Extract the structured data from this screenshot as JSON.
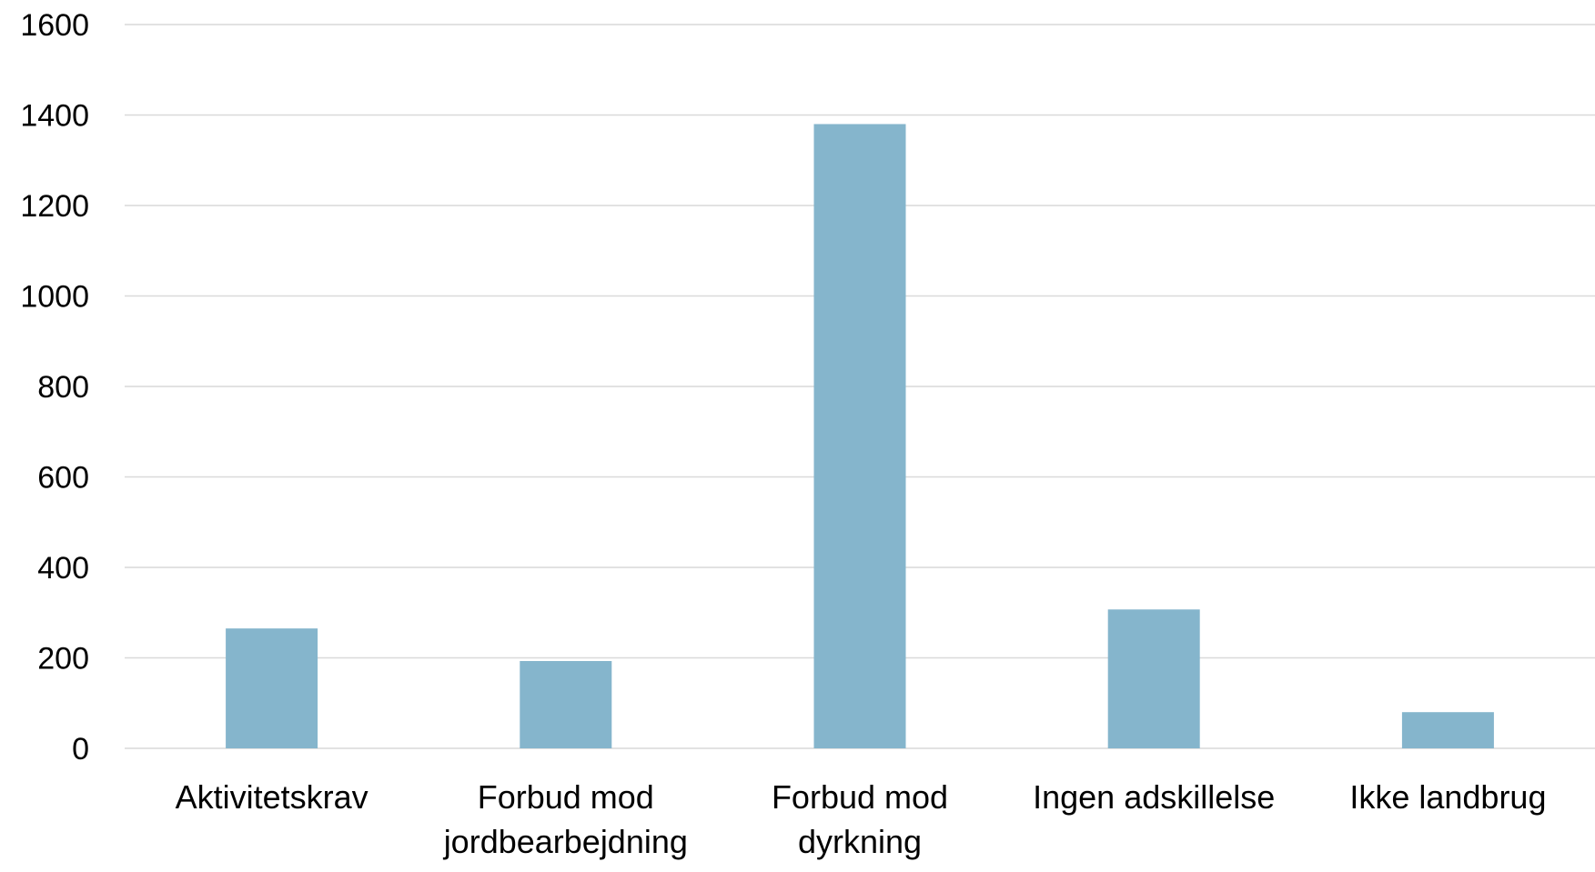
{
  "colors": {
    "bar": "#85b5cc",
    "grid": "#d9d9d9",
    "text": "#000000"
  },
  "chart_data": {
    "type": "bar",
    "title": "",
    "xlabel": "",
    "ylabel": "",
    "ylim": [
      0,
      1600
    ],
    "yticks": [
      0,
      200,
      400,
      600,
      800,
      1000,
      1200,
      1400,
      1600
    ],
    "grid": true,
    "legend": "none",
    "categories": [
      [
        "Aktivitetskrav"
      ],
      [
        "Forbud mod",
        "jordbearbejdning"
      ],
      [
        "Forbud mod",
        "dyrkning"
      ],
      [
        "Ingen adskillelse"
      ],
      [
        "Ikke landbrug"
      ]
    ],
    "values": [
      265,
      193,
      1380,
      307,
      80
    ]
  }
}
